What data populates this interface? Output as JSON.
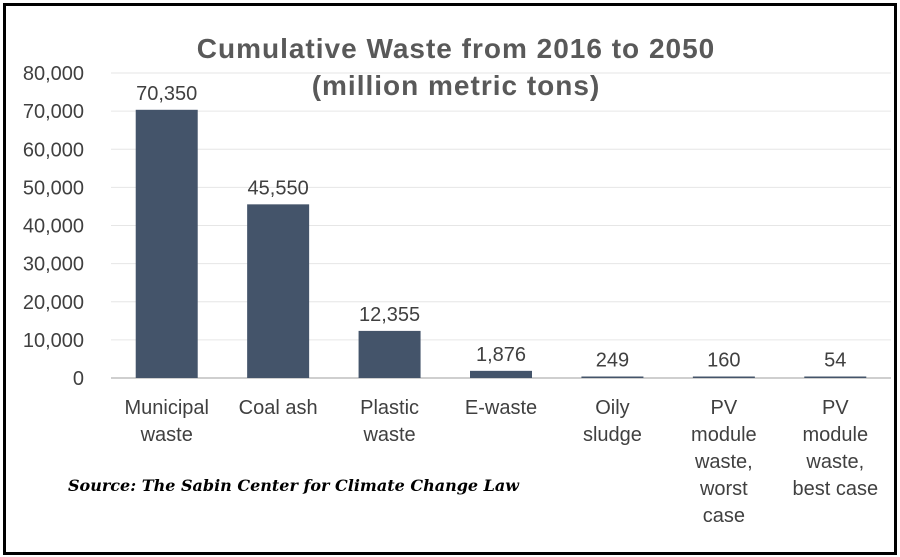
{
  "chart_data": {
    "type": "bar",
    "title_lines": [
      "Cumulative Waste from 2016 to 2050",
      "(million metric tons)"
    ],
    "categories": [
      [
        "Municipal",
        "waste"
      ],
      [
        "Coal ash"
      ],
      [
        "Plastic",
        "waste"
      ],
      [
        "E-waste"
      ],
      [
        "Oily",
        "sludge"
      ],
      [
        "PV",
        "module",
        "waste,",
        "worst",
        "case"
      ],
      [
        "PV",
        "module",
        "waste,",
        "best case"
      ]
    ],
    "values": [
      70350,
      45550,
      12355,
      1876,
      249,
      160,
      54
    ],
    "data_labels": [
      "70,350",
      "45,550",
      "12,355",
      "1,876",
      "249",
      "160",
      "54"
    ],
    "y_ticks": [
      "0",
      "10,000",
      "20,000",
      "30,000",
      "40,000",
      "50,000",
      "60,000",
      "70,000",
      "80,000"
    ],
    "ylim": [
      0,
      80000
    ],
    "grid": true,
    "bar_color": "#44546A",
    "source": "Source: The Sabin Center for Climate Change Law"
  }
}
